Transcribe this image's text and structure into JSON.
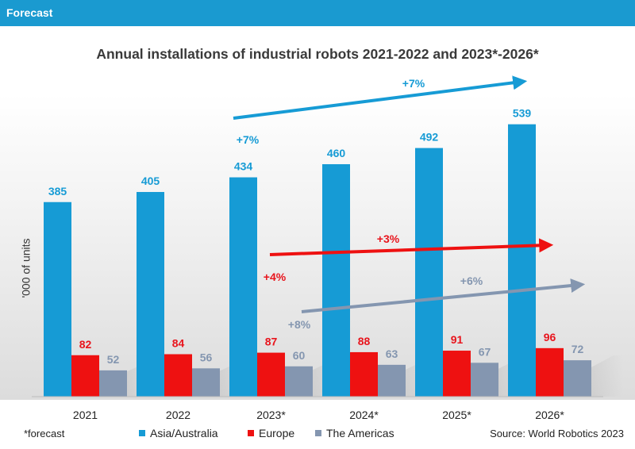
{
  "header": {
    "title": "Forecast"
  },
  "footnote": "*forecast",
  "source": "Source: World Robotics 2023",
  "chart_data": {
    "type": "bar",
    "title": "Annual installations of industrial robots 2021-2022 and 2023*-2026*",
    "ylabel": "'000 of units",
    "xlabel": "",
    "ylim": [
      0,
      570
    ],
    "categories": [
      "2021",
      "2022",
      "2023*",
      "2024*",
      "2025*",
      "2026*"
    ],
    "series": [
      {
        "name": "Asia/Australia",
        "color": "#169bd5",
        "label_color": "#169bd5",
        "values": [
          385,
          405,
          434,
          460,
          492,
          539
        ]
      },
      {
        "name": "Europe",
        "color": "#ee1111",
        "label_color": "#e8141c",
        "values": [
          82,
          84,
          87,
          88,
          91,
          96
        ]
      },
      {
        "name": "The Americas",
        "color": "#8496b0",
        "label_color": "#8496b0",
        "values": [
          52,
          56,
          60,
          63,
          67,
          72
        ]
      }
    ],
    "annotations": [
      {
        "text": "+7%",
        "series": "Asia/Australia",
        "color": "#169bd5",
        "role": "arrow"
      },
      {
        "text": "+7%",
        "series": "Asia/Australia",
        "color": "#169bd5",
        "role": "side"
      },
      {
        "text": "+3%",
        "series": "Europe",
        "color": "#e8141c",
        "role": "arrow"
      },
      {
        "text": "+4%",
        "series": "Europe",
        "color": "#e8141c",
        "role": "side"
      },
      {
        "text": "+6%",
        "series": "The Americas",
        "color": "#8496b0",
        "role": "arrow"
      },
      {
        "text": "+8%",
        "series": "The Americas",
        "color": "#8496b0",
        "role": "side"
      }
    ]
  }
}
